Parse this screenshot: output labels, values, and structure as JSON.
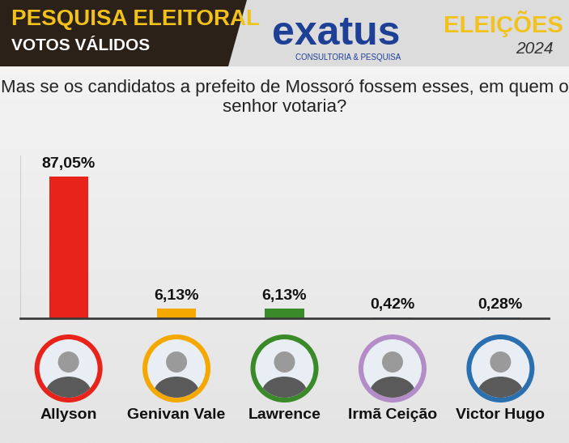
{
  "chart_data": {
    "type": "bar",
    "title": "Mas se os candidatos a prefeito de Mossoró fossem esses, em quem o senhor votaria?",
    "annotations": [
      "PESQUISA ELEITORAL",
      "VOTOS VÁLIDOS",
      "exatus",
      "CONSULTORIA & PESQUISA",
      "ELEIÇÕES",
      "2024"
    ],
    "categories": [
      "Allyson",
      "Genivan Vale",
      "Lawrence",
      "Irmã Ceição",
      "Victor Hugo"
    ],
    "values": [
      87.05,
      6.13,
      6.13,
      0.42,
      0.28
    ],
    "value_labels": [
      "87,05%",
      "6,13%",
      "6,13%",
      "0,42%",
      "0,28%"
    ],
    "colors": [
      "#e8231a",
      "#f5a800",
      "#3a8a2a",
      "#b48cc8",
      "#2a6fb0"
    ],
    "ylim": [
      0,
      100
    ],
    "yticks": [],
    "grid": false,
    "data_labels": true,
    "tick_labels": "x"
  }
}
